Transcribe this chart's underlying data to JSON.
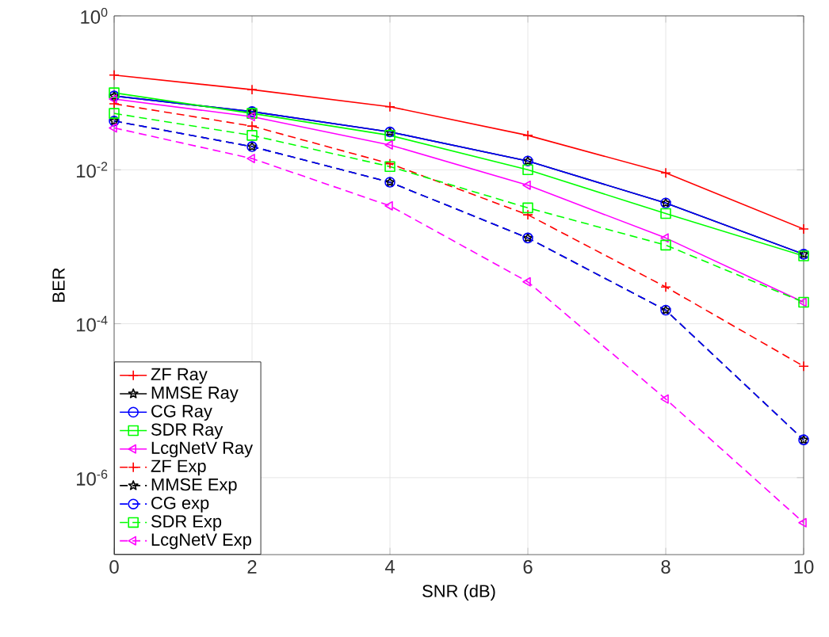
{
  "chart_data": {
    "type": "line",
    "xlabel": "SNR (dB)",
    "ylabel": "BER",
    "x": [
      0,
      2,
      4,
      6,
      8,
      10
    ],
    "xlim": [
      0,
      10
    ],
    "xticks": [
      0,
      2,
      4,
      6,
      8,
      10
    ],
    "ylim": [
      1e-07,
      1
    ],
    "log": "y",
    "yticks": [
      {
        "value": 1e-06,
        "label": "10$^{-6}$"
      },
      {
        "value": 0.0001,
        "label": "10$^{-4}$"
      },
      {
        "value": 0.01,
        "label": "10$^{-2}$"
      },
      {
        "value": 1,
        "label": "10$^{0}$"
      }
    ],
    "grid": true,
    "legend": "bottom left",
    "series": [
      {
        "name": "ZF Ray",
        "color": "#ff0000",
        "marker": "cross",
        "line_style": "solid",
        "values": [
          0.17,
          0.11,
          0.066,
          0.028,
          0.0091,
          0.0017
        ]
      },
      {
        "name": "MMSE Ray",
        "color": "#000000",
        "marker": "star",
        "line_style": "solid",
        "values": [
          0.091,
          0.057,
          0.031,
          0.013,
          0.0037,
          0.0008
        ]
      },
      {
        "name": "CG Ray",
        "color": "#0000ff",
        "marker": "circle",
        "line_style": "solid",
        "values": [
          0.091,
          0.057,
          0.031,
          0.013,
          0.0037,
          0.0008
        ]
      },
      {
        "name": "SDR Ray",
        "color": "#00ff00",
        "marker": "square",
        "line_style": "solid",
        "values": [
          0.1,
          0.054,
          0.028,
          0.01,
          0.0027,
          0.00076
        ]
      },
      {
        "name": "LcgNetV Ray",
        "color": "#ff00ff",
        "marker": "triangle",
        "line_style": "solid",
        "values": [
          0.083,
          0.049,
          0.021,
          0.0063,
          0.0013,
          0.00019
        ]
      },
      {
        "name": "ZF Exp",
        "color": "#ff0000",
        "marker": "cross",
        "line_style": "dashed",
        "values": [
          0.072,
          0.037,
          0.012,
          0.0026,
          0.0003,
          2.8e-05
        ]
      },
      {
        "name": "MMSE Exp",
        "color": "#000000",
        "marker": "star",
        "line_style": "dashed",
        "values": [
          0.043,
          0.02,
          0.0069,
          0.0013,
          0.00015,
          3.1e-06
        ]
      },
      {
        "name": "CG exp",
        "color": "#0000ff",
        "marker": "circle",
        "line_style": "dashed",
        "values": [
          0.043,
          0.02,
          0.0069,
          0.0013,
          0.00015,
          3.1e-06
        ]
      },
      {
        "name": "SDR Exp",
        "color": "#00ff00",
        "marker": "square",
        "line_style": "dashed",
        "values": [
          0.054,
          0.028,
          0.011,
          0.0032,
          0.00105,
          0.00019
        ]
      },
      {
        "name": "LcgNetV Exp",
        "color": "#ff00ff",
        "marker": "triangle",
        "line_style": "dashed",
        "values": [
          0.035,
          0.014,
          0.0034,
          0.00035,
          1.05e-05,
          2.6e-07
        ]
      }
    ]
  }
}
